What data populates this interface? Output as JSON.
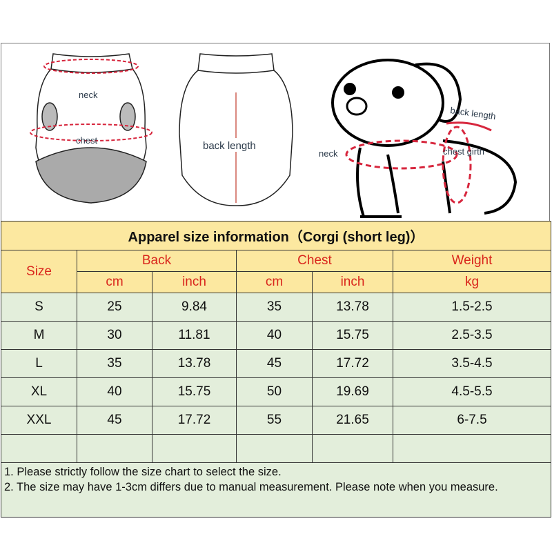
{
  "illustration": {
    "garment_front_labels": [
      "neck",
      "chest"
    ],
    "garment_back_label": "back length",
    "dog_labels": [
      "back length",
      "neck",
      "chest girth"
    ],
    "measure_color": "#d7263d"
  },
  "table": {
    "title": "Apparel  size  information（Corgi (short leg)）",
    "headers": {
      "size": "Size",
      "back": "Back",
      "chest": "Chest",
      "weight": "Weight"
    },
    "units": [
      "cm",
      "inch",
      "cm",
      "inch",
      "kg"
    ],
    "rows": [
      [
        "S",
        "25",
        "9.84",
        "35",
        "13.78",
        "1.5-2.5"
      ],
      [
        "M",
        "30",
        "11.81",
        "40",
        "15.75",
        "2.5-3.5"
      ],
      [
        "L",
        "35",
        "13.78",
        "45",
        "17.72",
        "3.5-4.5"
      ],
      [
        "XL",
        "40",
        "15.75",
        "50",
        "19.69",
        "4.5-5.5"
      ],
      [
        "XXL",
        "45",
        "17.72",
        "55",
        "21.65",
        "6-7.5"
      ]
    ],
    "notes": [
      "1. Please strictly follow the size chart  to select the size.",
      "2. The size may have 1-3cm differs due to manual measurement. Please note when you measure."
    ],
    "header_color": "#fce8a0",
    "body_color": "#e3eedb",
    "header_text_color": "#d9251c"
  }
}
